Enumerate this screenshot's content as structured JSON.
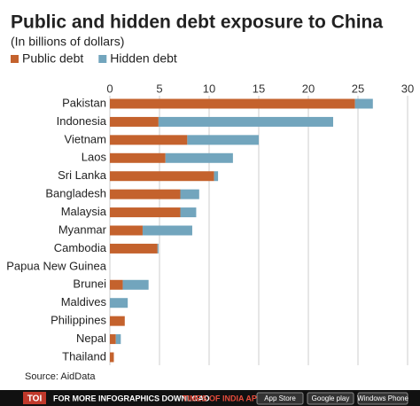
{
  "chart_data": {
    "type": "stacked-barh",
    "title": "Public and hidden debt exposure to China",
    "subtitle": "(In billions of dollars)",
    "source": "Source: AidData",
    "footer": {
      "logo": "TOI",
      "text": "FOR MORE INFOGRAPHICS DOWNLOAD",
      "app": "TIMES OF INDIA APP",
      "badges": [
        "App Store",
        "Google play",
        "Windows Phone"
      ]
    },
    "categories": [
      "Pakistan",
      "Indonesia",
      "Vietnam",
      "Laos",
      "Sri Lanka",
      "Bangladesh",
      "Malaysia",
      "Myanmar",
      "Cambodia",
      "Papua New Guinea",
      "Brunei",
      "Maldives",
      "Philippines",
      "Nepal",
      "Thailand"
    ],
    "series": [
      {
        "name": "Public debt",
        "color": "#c4622d",
        "values": [
          24.7,
          4.9,
          7.8,
          5.6,
          10.5,
          7.1,
          7.1,
          3.3,
          4.8,
          0,
          1.3,
          0,
          1.5,
          0.6,
          0.4
        ]
      },
      {
        "name": "Hidden debt",
        "color": "#72a5bd",
        "values": [
          1.8,
          17.6,
          7.2,
          6.8,
          0.4,
          1.9,
          1.6,
          5.0,
          0.1,
          0,
          2.6,
          1.8,
          0,
          0.5,
          0
        ]
      }
    ],
    "xlim": [
      0,
      30
    ],
    "xticks": [
      0,
      5,
      10,
      15,
      20,
      25,
      30
    ],
    "grid": true
  }
}
